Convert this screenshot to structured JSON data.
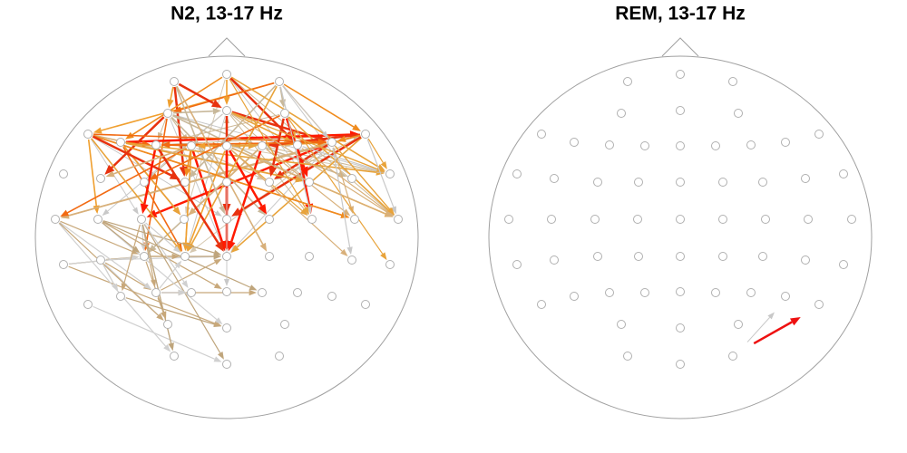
{
  "panels": [
    {
      "title": "N2, 13-17 Hz"
    },
    {
      "title": "REM, 13-17 Hz"
    }
  ]
}
